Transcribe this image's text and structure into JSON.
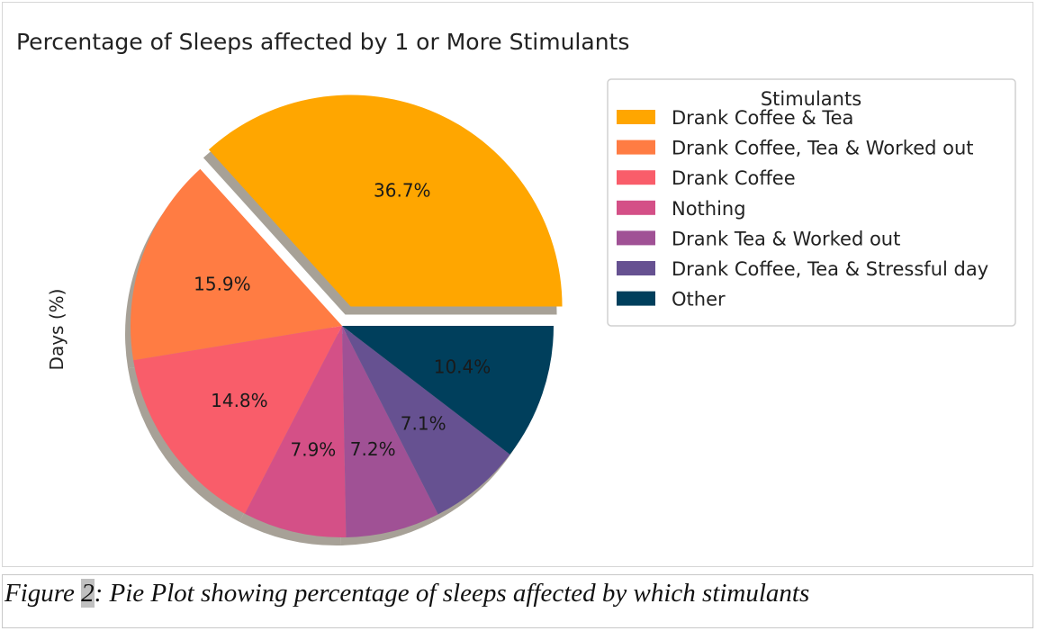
{
  "chart_data": {
    "type": "pie",
    "title": "Percentage of Sleeps affected by 1 or More Stimulants",
    "ylabel": "Days (%)",
    "legend": {
      "title": "Stimulants",
      "placement": "right"
    },
    "slices": [
      {
        "label": "Drank Coffee & Tea",
        "value": 36.7,
        "pct_label": "36.7%",
        "color": "#FFA600",
        "exploded": true
      },
      {
        "label": "Drank Coffee, Tea & Worked out",
        "value": 15.9,
        "pct_label": "15.9%",
        "color": "#FF7C43",
        "exploded": false
      },
      {
        "label": "Drank Coffee",
        "value": 14.8,
        "pct_label": "14.8%",
        "color": "#F95D6A",
        "exploded": false
      },
      {
        "label": "Nothing",
        "value": 7.9,
        "pct_label": "7.9%",
        "color": "#D45087",
        "exploded": false
      },
      {
        "label": "Drank Tea & Worked out",
        "value": 7.2,
        "pct_label": "7.2%",
        "color": "#A05195",
        "exploded": false
      },
      {
        "label": "Drank Coffee, Tea & Stressful day",
        "value": 7.1,
        "pct_label": "7.1%",
        "color": "#665191",
        "exploded": false
      },
      {
        "label": "Other",
        "value": 10.4,
        "pct_label": "10.4%",
        "color": "#003F5C",
        "exploded": false
      }
    ],
    "shadow": true,
    "start_angle_deg": 0,
    "direction": "counterclockwise"
  },
  "caption": {
    "prefix": "Figure ",
    "number": "2",
    "text": ": Pie Plot showing percentage of sleeps affected by which stimulants"
  }
}
